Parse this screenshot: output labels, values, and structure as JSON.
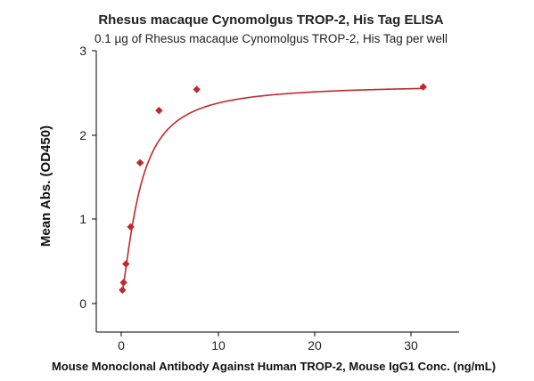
{
  "chart_data": {
    "type": "scatter",
    "title": "Rhesus macaque Cynomolgus TROP-2, His Tag ELISA",
    "subtitle": "0.1 µg of Rhesus macaque Cynomolgus TROP-2, His Tag per well",
    "xlabel": "Mouse Monoclonal Antibody Against Human TROP-2, Mouse IgG1 Conc. (ng/mL)",
    "ylabel": "Mean Abs. (OD450)",
    "xlim": [
      -3,
      35.5
    ],
    "ylim": [
      -0.35,
      3
    ],
    "xticks": [
      "0",
      "10",
      "20",
      "30"
    ],
    "yticks": [
      "0",
      "1",
      "2",
      "3"
    ],
    "grid": false,
    "fit_curve": true,
    "series": [
      {
        "points": [
          {
            "x": 0.122,
            "y": 0.16
          },
          {
            "x": 0.244,
            "y": 0.25
          },
          {
            "x": 0.488,
            "y": 0.47
          },
          {
            "x": 0.977,
            "y": 0.91
          },
          {
            "x": 1.95,
            "y": 1.67
          },
          {
            "x": 3.91,
            "y": 2.29
          },
          {
            "x": 7.81,
            "y": 2.54
          },
          {
            "x": 31.25,
            "y": 2.57
          }
        ]
      }
    ],
    "colors": {
      "marker": "#c0282d",
      "curve": "#c0282d",
      "axis": "#000000",
      "text": "#222222"
    }
  }
}
